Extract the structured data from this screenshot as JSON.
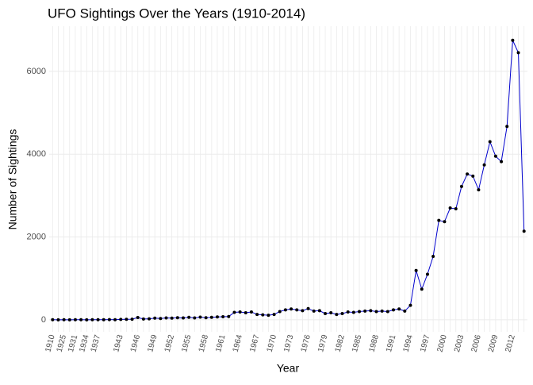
{
  "chart_data": {
    "type": "line",
    "title": "UFO Sightings Over the Years (1910-2014)",
    "x_label": "Year",
    "y_label": "Number of Sightings",
    "categories": [
      1910,
      null,
      1925,
      null,
      1931,
      null,
      1934,
      null,
      1937,
      null,
      null,
      null,
      1943,
      null,
      null,
      1946,
      null,
      null,
      1949,
      null,
      null,
      1952,
      null,
      null,
      1955,
      null,
      null,
      1958,
      null,
      null,
      1961,
      null,
      null,
      1964,
      null,
      null,
      1967,
      null,
      null,
      1970,
      null,
      null,
      1973,
      null,
      null,
      1976,
      null,
      null,
      1979,
      null,
      null,
      1982,
      null,
      null,
      1985,
      null,
      null,
      1988,
      null,
      null,
      1991,
      null,
      null,
      1994,
      null,
      null,
      1997,
      null,
      null,
      2000,
      null,
      null,
      2003,
      null,
      null,
      2006,
      null,
      null,
      2009,
      null,
      null,
      2012,
      null,
      null
    ],
    "series": [
      {
        "name": "Sightings",
        "color": "#0000cd",
        "marker_color": "#000000",
        "values": [
          2,
          1,
          3,
          1,
          2,
          2,
          1,
          2,
          3,
          2,
          4,
          3,
          9,
          11,
          15,
          55,
          20,
          25,
          40,
          30,
          45,
          40,
          50,
          45,
          60,
          45,
          65,
          50,
          60,
          70,
          75,
          80,
          180,
          190,
          170,
          190,
          130,
          120,
          110,
          130,
          200,
          240,
          260,
          240,
          220,
          270,
          210,
          220,
          150,
          170,
          130,
          150,
          190,
          180,
          200,
          210,
          220,
          200,
          210,
          200,
          240,
          260,
          210,
          350,
          1190,
          740,
          1100,
          1530,
          2400,
          2370,
          2700,
          2680,
          3220,
          3520,
          3470,
          3140,
          3740,
          4300,
          3950,
          3820,
          4670,
          6750,
          6450,
          2140
        ]
      }
    ],
    "ylim": [
      -290,
      7090
    ],
    "yticks": [
      0,
      2000,
      4000,
      6000
    ],
    "grid": true
  }
}
